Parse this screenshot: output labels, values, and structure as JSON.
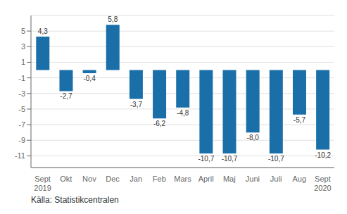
{
  "chart_data": {
    "type": "bar",
    "categories": [
      "Sept\n2019",
      "Okt",
      "Nov",
      "Dec",
      "Jan",
      "Feb",
      "Mars",
      "April",
      "Maj",
      "Juni",
      "Juli",
      "Aug",
      "Sept\n2020"
    ],
    "values": [
      4.3,
      -2.7,
      -0.4,
      5.8,
      -3.7,
      -6.2,
      -4.8,
      -10.7,
      -10.7,
      -8.0,
      -10.7,
      -5.7,
      -10.2
    ],
    "value_labels": [
      "4,3",
      "-2,7",
      "-0,4",
      "5,8",
      "-3,7",
      "-6,2",
      "-4,8",
      "-10,7",
      "-10,7",
      "-8,0",
      "-10,7",
      "-5,7",
      "-10,2"
    ],
    "color": "#1a6fa8",
    "ylim": [
      -12.5,
      7.0
    ],
    "yticks": [
      -11,
      -9,
      -7,
      -5,
      -3,
      -1,
      1,
      3,
      5
    ],
    "grid": true,
    "data_labels": true,
    "annotations": [
      "Källa: Statistikcentralen"
    ]
  }
}
